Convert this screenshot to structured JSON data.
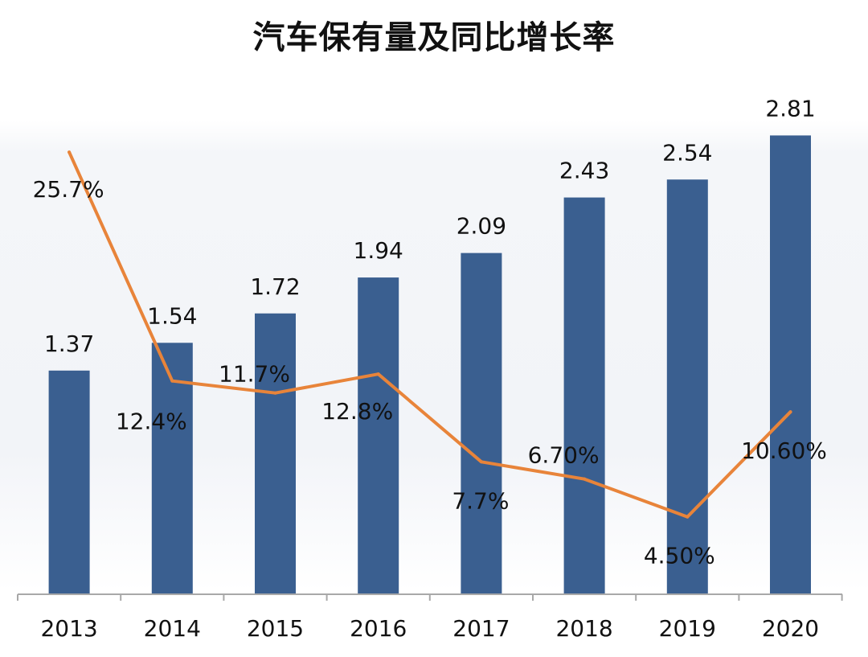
{
  "chart_data": {
    "type": "bar",
    "title": "汽车保有量及同比增长率",
    "categories": [
      "2013",
      "2014",
      "2015",
      "2016",
      "2017",
      "2018",
      "2019",
      "2020"
    ],
    "series": [
      {
        "name": "汽车保有量",
        "type": "bar",
        "values": [
          1.37,
          1.54,
          1.72,
          1.94,
          2.09,
          2.43,
          2.54,
          2.81
        ],
        "labels": [
          "1.37",
          "1.54",
          "1.72",
          "1.94",
          "2.09",
          "2.43",
          "2.54",
          "2.81"
        ],
        "color": "#3a5f90"
      },
      {
        "name": "同比增长率",
        "type": "line",
        "values": [
          25.7,
          12.4,
          11.7,
          12.8,
          7.7,
          6.7,
          4.5,
          10.6
        ],
        "labels": [
          "25.7%",
          "12.4%",
          "11.7%",
          "12.8%",
          "7.7%",
          "6.70%",
          "4.50%",
          "10.60%"
        ],
        "color": "#e8843a"
      }
    ],
    "bar_axis_range": [
      0,
      2.95
    ],
    "line_axis_range": [
      0,
      28
    ],
    "grid": false,
    "legend": "none"
  }
}
